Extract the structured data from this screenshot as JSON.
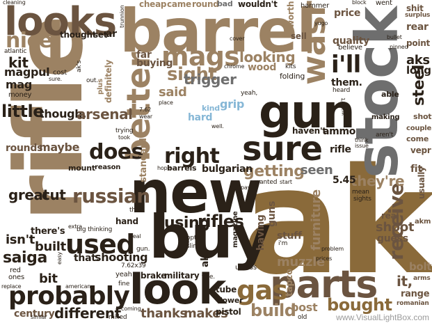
{
  "palette": {
    "dark": "#2a2118",
    "brown": "#6b5440",
    "tan": "#9c8263",
    "gold": "#8a6a3a",
    "gray": "#6e6e6e",
    "lightgray": "#a8a8a8",
    "blue": "#86b7d6"
  },
  "credit": "www.VisualLightBox.com",
  "words": [
    {
      "text": "ak",
      "color": "gold"
    },
    {
      "text": "rifle",
      "color": "tan"
    },
    {
      "text": "barrel",
      "color": "tan"
    },
    {
      "text": "stock",
      "color": "gray"
    },
    {
      "text": "new",
      "color": "dark"
    },
    {
      "text": "buy",
      "color": "dark"
    },
    {
      "text": "gun",
      "color": "dark"
    },
    {
      "text": "parts",
      "color": "brown"
    },
    {
      "text": "look",
      "color": "dark"
    },
    {
      "text": "looks",
      "color": "brown"
    },
    {
      "text": "sure",
      "color": "dark"
    },
    {
      "text": "wasr",
      "color": "tan"
    },
    {
      "text": "better",
      "color": "tan"
    },
    {
      "text": "mags",
      "color": "tan"
    },
    {
      "text": "probably",
      "color": "dark"
    },
    {
      "text": "used",
      "color": "dark"
    },
    {
      "text": "right",
      "color": "dark"
    },
    {
      "text": "russian",
      "color": "brown"
    },
    {
      "text": "receive",
      "color": "brown"
    },
    {
      "text": "does",
      "color": "dark"
    },
    {
      "text": "sight",
      "color": "tan"
    },
    {
      "text": "gas",
      "color": "gold"
    },
    {
      "text": "i'll",
      "color": "dark"
    },
    {
      "text": "nice",
      "color": "tan"
    },
    {
      "text": "little",
      "color": "dark"
    },
    {
      "text": "build",
      "color": "tan"
    },
    {
      "text": "getting",
      "color": "tan"
    },
    {
      "text": "bought",
      "color": "gold"
    },
    {
      "text": "thanks",
      "color": "brown"
    },
    {
      "text": "makes",
      "color": "brown"
    },
    {
      "text": "using",
      "color": "dark"
    },
    {
      "text": "rifles",
      "color": "dark"
    },
    {
      "text": "trigger",
      "color": "gray"
    },
    {
      "text": "looking",
      "color": "tan"
    },
    {
      "text": "though.",
      "color": "dark"
    },
    {
      "text": "arsenal",
      "color": "brown"
    },
    {
      "text": "great",
      "color": "dark"
    },
    {
      "text": "cut",
      "color": "dark"
    },
    {
      "text": "different",
      "color": "dark"
    },
    {
      "text": "century",
      "color": "brown"
    },
    {
      "text": "saiga",
      "color": "dark"
    },
    {
      "text": "built",
      "color": "dark"
    },
    {
      "text": "isn't",
      "color": "dark"
    },
    {
      "text": "rounds",
      "color": "brown"
    },
    {
      "text": "maybe",
      "color": "brown"
    },
    {
      "text": "post",
      "color": "tan"
    },
    {
      "text": "muzzle",
      "color": "tan"
    },
    {
      "text": "furniture",
      "color": "tan"
    },
    {
      "text": "they're",
      "color": "tan"
    },
    {
      "text": "seen",
      "color": "gray"
    },
    {
      "text": "shoot",
      "color": "brown"
    },
    {
      "text": "guess",
      "color": "brown"
    },
    {
      "text": "it,",
      "color": "brown"
    },
    {
      "text": "bolt",
      "color": "tan"
    },
    {
      "text": "steel",
      "color": "dark"
    },
    {
      "text": "aks",
      "color": "dark"
    },
    {
      "text": "long",
      "color": "dark"
    },
    {
      "text": "kit",
      "color": "dark"
    },
    {
      "text": "magpul",
      "color": "dark"
    },
    {
      "text": "mag",
      "color": "dark"
    },
    {
      "text": "grip",
      "color": "blue"
    },
    {
      "text": "hard",
      "color": "blue"
    },
    {
      "text": "kind",
      "color": "blue"
    },
    {
      "text": "shooting",
      "color": "dark"
    },
    {
      "text": "that.",
      "color": "dark"
    },
    {
      "text": "bit",
      "color": "dark"
    },
    {
      "text": "rear",
      "color": "brown"
    },
    {
      "text": "point",
      "color": "brown"
    },
    {
      "text": "price",
      "color": "brown"
    },
    {
      "text": "quality",
      "color": "brown"
    },
    {
      "text": "sell",
      "color": "brown"
    },
    {
      "text": "them.",
      "color": "dark"
    },
    {
      "text": "said",
      "color": "tan"
    },
    {
      "text": "5.45",
      "color": "dark"
    },
    {
      "text": "ammo",
      "color": "dark"
    },
    {
      "text": "haven't",
      "color": "dark"
    },
    {
      "text": "rifle",
      "color": "dark"
    },
    {
      "text": "hand",
      "color": "dark"
    },
    {
      "text": "there's",
      "color": "dark"
    },
    {
      "text": "standard",
      "color": "tan"
    },
    {
      "text": "definitely",
      "color": "tan"
    },
    {
      "text": "far",
      "color": "brown"
    },
    {
      "text": "buying",
      "color": "brown"
    },
    {
      "text": "brake",
      "color": "dark"
    },
    {
      "text": "military",
      "color": "dark"
    },
    {
      "text": "ak.",
      "color": "dark"
    },
    {
      "text": "having",
      "color": "brown"
    },
    {
      "text": "guns",
      "color": "brown"
    },
    {
      "text": "stuff",
      "color": "brown"
    },
    {
      "text": "fit",
      "color": "brown"
    },
    {
      "text": "usually",
      "color": "brown"
    },
    {
      "text": "vepr",
      "color": "brown"
    },
    {
      "text": "couple",
      "color": "brown"
    },
    {
      "text": "shot",
      "color": "brown"
    },
    {
      "text": "come",
      "color": "brown"
    },
    {
      "text": "real",
      "color": "brown"
    },
    {
      "text": "range",
      "color": "brown"
    },
    {
      "text": "arms",
      "color": "brown"
    },
    {
      "text": "akm",
      "color": "brown"
    },
    {
      "text": "romanian",
      "color": "brown"
    },
    {
      "text": "tapco",
      "color": "tan"
    },
    {
      "text": "tube",
      "color": "dark"
    },
    {
      "text": "lower",
      "color": "dark"
    },
    {
      "text": "pistol",
      "color": "dark"
    },
    {
      "text": "mount",
      "color": "dark"
    },
    {
      "text": "reason",
      "color": "dark"
    },
    {
      "text": "bulgarian",
      "color": "dark"
    },
    {
      "text": "barrels",
      "color": "dark"
    },
    {
      "text": "magazine",
      "color": "dark"
    },
    {
      "text": "wood",
      "color": "tan"
    },
    {
      "text": "worth",
      "color": "tan"
    },
    {
      "text": "shit",
      "color": "brown"
    },
    {
      "text": "surplus",
      "color": "brown"
    },
    {
      "text": "cheap",
      "color": "tan"
    },
    {
      "text": "came",
      "color": "tan"
    },
    {
      "text": "round",
      "color": "tan"
    },
    {
      "text": "bad",
      "color": "gray"
    },
    {
      "text": "wouldn't",
      "color": "dark"
    },
    {
      "text": "hammer",
      "color": "dark"
    },
    {
      "text": "went",
      "color": "dark"
    },
    {
      "text": "cleaning",
      "color": "dark"
    },
    {
      "text": "cover",
      "color": "dark"
    },
    {
      "text": "thought",
      "color": "dark"
    },
    {
      "text": "set",
      "color": "dark"
    },
    {
      "text": "ar",
      "color": "dark"
    },
    {
      "text": "atlantic",
      "color": "dark"
    },
    {
      "text": "money",
      "color": "dark"
    },
    {
      "text": "cost",
      "color": "dark"
    },
    {
      "text": "ak's",
      "color": "dark"
    },
    {
      "text": "out.",
      "color": "dark"
    },
    {
      "text": "plus",
      "color": "tan"
    },
    {
      "text": "big thinking",
      "color": "dark"
    },
    {
      "text": "7.62x39",
      "color": "dark"
    },
    {
      "text": "yeah",
      "color": "dark"
    },
    {
      "text": "fine",
      "color": "dark"
    },
    {
      "text": "american",
      "color": "dark"
    },
    {
      "text": "replace",
      "color": "dark"
    },
    {
      "text": "ones",
      "color": "dark"
    },
    {
      "text": "red",
      "color": "dark"
    },
    {
      "text": "simlar",
      "color": "dark"
    },
    {
      "text": "coming",
      "color": "dark"
    },
    {
      "text": "milled",
      "color": "dark"
    },
    {
      "text": "unless",
      "color": "dark"
    },
    {
      "text": "fine.",
      "color": "dark"
    },
    {
      "text": "think",
      "color": "dark"
    },
    {
      "text": "issue",
      "color": "dark"
    },
    {
      "text": "i'm",
      "color": "dark"
    },
    {
      "text": "able",
      "color": "dark"
    },
    {
      "text": "wasn't",
      "color": "dark"
    },
    {
      "text": "making",
      "color": "dark"
    },
    {
      "text": "aren't",
      "color": "dark"
    },
    {
      "text": "mean",
      "color": "dark"
    },
    {
      "text": "sights",
      "color": "dark"
    },
    {
      "text": "wanted",
      "color": "dark"
    },
    {
      "text": "start",
      "color": "dark"
    },
    {
      "text": "pay",
      "color": "dark"
    },
    {
      "text": "old",
      "color": "dark"
    },
    {
      "text": "prices",
      "color": "dark"
    },
    {
      "text": "problem",
      "color": "dark"
    },
    {
      "text": "folding",
      "color": "dark"
    },
    {
      "text": "kits",
      "color": "dark"
    },
    {
      "text": "chrome",
      "color": "dark"
    },
    {
      "text": "yeah,",
      "color": "dark"
    },
    {
      "text": "well.",
      "color": "dark"
    },
    {
      "text": "that,",
      "color": "dark"
    },
    {
      "text": "optic",
      "color": "dark"
    },
    {
      "text": "sling",
      "color": "dark"
    },
    {
      "text": "gun.",
      "color": "dark"
    },
    {
      "text": "deal",
      "color": "dark"
    },
    {
      "text": "easy",
      "color": "dark"
    },
    {
      "text": "extra",
      "color": "dark"
    },
    {
      "text": "sure.",
      "color": "dark"
    },
    {
      "text": "trying",
      "color": "dark"
    },
    {
      "text": "took",
      "color": "dark"
    },
    {
      "text": "hope",
      "color": "dark"
    },
    {
      "text": "7.62",
      "color": "dark"
    },
    {
      "text": "wear",
      "color": "dark"
    },
    {
      "text": "place",
      "color": "dark"
    },
    {
      "text": "heard",
      "color": "dark"
    },
    {
      "text": "believe",
      "color": "dark"
    },
    {
      "text": "yugo",
      "color": "dark"
    },
    {
      "text": "bullet",
      "color": "dark"
    },
    {
      "text": "pinned",
      "color": "dark"
    },
    {
      "text": "block",
      "color": "dark"
    },
    {
      "text": "trunnion",
      "color": "dark"
    }
  ]
}
